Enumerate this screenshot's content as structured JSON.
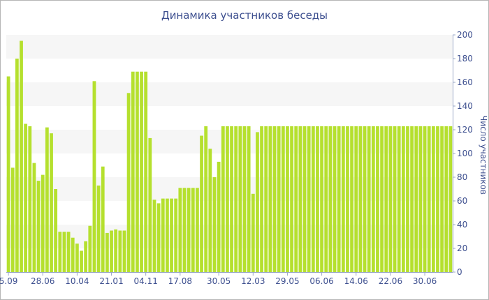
{
  "chart_data": {
    "type": "bar",
    "title": "Динамика участников беседы",
    "xlabel": "",
    "ylabel": "Число участников",
    "ylim": [
      0,
      200
    ],
    "yticks": [
      0,
      20,
      40,
      60,
      80,
      100,
      120,
      140,
      160,
      180,
      200
    ],
    "x_tick_labels": [
      {
        "label": "5.09",
        "index": 0
      },
      {
        "label": "28.06",
        "index": 8
      },
      {
        "label": "10.04",
        "index": 16
      },
      {
        "label": "21.01",
        "index": 24
      },
      {
        "label": "04.11",
        "index": 32
      },
      {
        "label": "17.08",
        "index": 40
      },
      {
        "label": "30.05",
        "index": 49
      },
      {
        "label": "12.03",
        "index": 57
      },
      {
        "label": "29.05",
        "index": 65
      },
      {
        "label": "06.06",
        "index": 73
      },
      {
        "label": "14.06",
        "index": 81
      },
      {
        "label": "22.06",
        "index": 89
      },
      {
        "label": "30.06",
        "index": 97
      }
    ],
    "values": [
      165,
      88,
      180,
      195,
      125,
      123,
      92,
      77,
      82,
      122,
      117,
      70,
      34,
      34,
      34,
      29,
      24,
      18,
      26,
      39,
      161,
      73,
      89,
      33,
      35,
      36,
      35,
      35,
      151,
      169,
      169,
      169,
      169,
      113,
      61,
      58,
      62,
      62,
      62,
      62,
      71,
      71,
      71,
      71,
      71,
      115,
      123,
      104,
      80,
      93,
      123,
      123,
      123,
      123,
      123,
      123,
      123,
      66,
      118,
      123,
      123,
      123,
      123,
      123,
      123,
      123,
      123,
      123,
      123,
      123,
      123,
      123,
      123,
      123,
      123,
      123,
      123,
      123,
      123,
      123,
      123,
      123,
      123,
      123,
      123,
      123,
      123,
      123,
      123,
      123,
      123,
      123,
      123,
      123,
      123,
      123,
      123,
      123,
      123,
      123,
      123,
      123,
      123,
      123
    ],
    "bar_color": "#b5e02e",
    "band_color": "#f6f6f6",
    "text_color": "#3d4f8f",
    "grid": true,
    "legend": "none"
  }
}
